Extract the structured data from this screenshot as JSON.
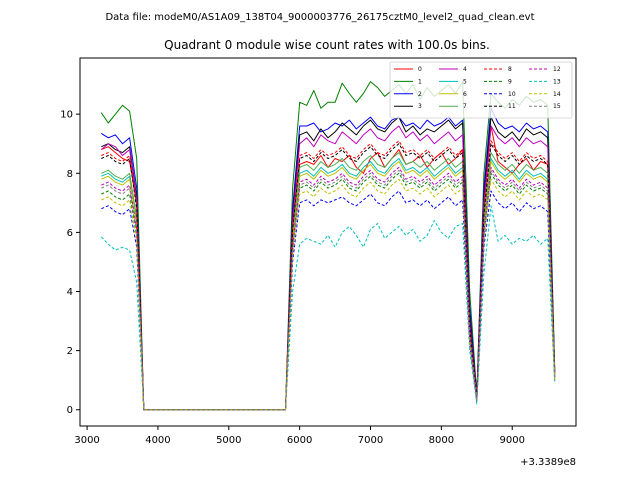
{
  "chart_data": {
    "type": "line",
    "suptitle": "Data file: modeM0/AS1A09_138T04_9000003776_26175cztM0_level2_quad_clean.evt",
    "title": "Quadrant 0 module wise count rates with 100.0s bins.",
    "xlabel": "",
    "ylabel": "",
    "x_offset_label": "+3.3389e8",
    "xlim": [
      2900,
      9900
    ],
    "ylim": [
      -0.55,
      11.9
    ],
    "xticks": [
      3000,
      4000,
      5000,
      6000,
      7000,
      8000,
      9000
    ],
    "yticks": [
      0,
      2,
      4,
      6,
      8,
      10
    ],
    "legend_position": "top-right",
    "x": [
      3200,
      3300,
      3400,
      3500,
      3600,
      3700,
      3800,
      3900,
      4000,
      4100,
      4200,
      4300,
      4400,
      4500,
      4600,
      4700,
      4800,
      4900,
      5000,
      5100,
      5200,
      5300,
      5400,
      5500,
      5600,
      5700,
      5800,
      5900,
      6000,
      6100,
      6200,
      6300,
      6400,
      6500,
      6600,
      6700,
      6800,
      6900,
      7000,
      7100,
      7200,
      7300,
      7400,
      7500,
      7600,
      7700,
      7800,
      7900,
      8000,
      8100,
      8200,
      8300,
      8400,
      8500,
      8600,
      8700,
      8800,
      8900,
      9000,
      9100,
      9200,
      9300,
      9400,
      9500,
      9600
    ],
    "series": [
      {
        "name": "0",
        "color": "#ff0000",
        "dash": "solid",
        "values": [
          8.8,
          8.9,
          8.7,
          8.5,
          8.4,
          7.0,
          0,
          0,
          0,
          0,
          0,
          0,
          0,
          0,
          0,
          0,
          0,
          0,
          0,
          0,
          0,
          0,
          0,
          0,
          0,
          0,
          0,
          6.0,
          8.3,
          8.4,
          8.3,
          8.6,
          8.2,
          8.5,
          8.4,
          8.6,
          8.2,
          8.0,
          8.5,
          8.7,
          8.2,
          8.5,
          8.8,
          8.3,
          8.4,
          8.6,
          8.2,
          8.5,
          8.7,
          8.3,
          8.5,
          8.8,
          2.5,
          0.3,
          6.8,
          9.6,
          8.4,
          8.2,
          8.0,
          8.3,
          8.5,
          8.1,
          8.4,
          8.3,
          1.2
        ]
      },
      {
        "name": "1",
        "color": "#008000",
        "dash": "solid",
        "values": [
          10.05,
          9.7,
          10.0,
          10.3,
          10.1,
          8.5,
          0,
          0,
          0,
          0,
          0,
          0,
          0,
          0,
          0,
          0,
          0,
          0,
          0,
          0,
          0,
          0,
          0,
          0,
          0,
          0,
          0,
          7.5,
          10.4,
          10.3,
          10.8,
          10.2,
          10.4,
          10.4,
          11.05,
          10.7,
          10.4,
          10.7,
          11.1,
          10.9,
          10.6,
          10.8,
          11.0,
          10.7,
          11.0,
          10.5,
          10.9,
          10.6,
          10.8,
          11.0,
          10.7,
          11.1,
          4.0,
          0.5,
          8.0,
          10.7,
          10.4,
          10.2,
          10.5,
          10.3,
          10.6,
          10.4,
          10.5,
          10.3,
          1.4
        ]
      },
      {
        "name": "2",
        "color": "#0000ff",
        "dash": "solid",
        "values": [
          9.35,
          9.2,
          9.3,
          9.0,
          9.2,
          7.5,
          0,
          0,
          0,
          0,
          0,
          0,
          0,
          0,
          0,
          0,
          0,
          0,
          0,
          0,
          0,
          0,
          0,
          0,
          0,
          0,
          0,
          6.8,
          9.6,
          9.6,
          9.7,
          9.4,
          9.5,
          9.7,
          9.6,
          9.8,
          9.5,
          9.7,
          9.9,
          9.6,
          9.5,
          9.8,
          9.9,
          9.6,
          9.7,
          9.5,
          9.8,
          9.6,
          9.7,
          9.9,
          9.6,
          9.8,
          3.5,
          0.4,
          7.5,
          10.2,
          9.7,
          9.5,
          9.6,
          9.4,
          9.7,
          9.5,
          9.6,
          9.4,
          1.3
        ]
      },
      {
        "name": "3",
        "color": "#000000",
        "dash": "solid",
        "values": [
          8.9,
          9.0,
          8.8,
          8.7,
          8.9,
          7.2,
          0,
          0,
          0,
          0,
          0,
          0,
          0,
          0,
          0,
          0,
          0,
          0,
          0,
          0,
          0,
          0,
          0,
          0,
          0,
          0,
          0,
          6.5,
          9.3,
          9.4,
          9.1,
          9.5,
          9.2,
          9.4,
          9.7,
          9.5,
          9.3,
          9.6,
          9.8,
          9.5,
          9.4,
          9.7,
          9.9,
          9.4,
          9.6,
          9.3,
          9.5,
          9.4,
          9.6,
          9.8,
          9.5,
          9.7,
          3.2,
          0.4,
          7.2,
          9.9,
          9.4,
          9.2,
          9.4,
          9.1,
          9.5,
          9.3,
          9.4,
          9.2,
          1.3
        ]
      },
      {
        "name": "4",
        "color": "#bf00bf",
        "dash": "solid",
        "values": [
          8.8,
          9.0,
          8.9,
          8.6,
          8.8,
          7.1,
          0,
          0,
          0,
          0,
          0,
          0,
          0,
          0,
          0,
          0,
          0,
          0,
          0,
          0,
          0,
          0,
          0,
          0,
          0,
          0,
          0,
          6.4,
          9.0,
          9.2,
          8.9,
          9.3,
          9.1,
          9.0,
          9.4,
          9.2,
          9.0,
          9.3,
          9.5,
          9.2,
          9.1,
          9.4,
          9.6,
          9.2,
          9.4,
          9.1,
          9.3,
          9.0,
          9.2,
          9.4,
          9.1,
          9.3,
          3.0,
          0.4,
          7.0,
          9.6,
          9.2,
          9.0,
          9.2,
          8.9,
          9.2,
          9.0,
          9.1,
          8.9,
          1.2
        ]
      },
      {
        "name": "5",
        "color": "#00bfbf",
        "dash": "solid",
        "values": [
          7.9,
          8.0,
          7.8,
          7.7,
          7.9,
          6.4,
          0,
          0,
          0,
          0,
          0,
          0,
          0,
          0,
          0,
          0,
          0,
          0,
          0,
          0,
          0,
          0,
          0,
          0,
          0,
          0,
          0,
          5.8,
          8.0,
          8.1,
          7.9,
          8.2,
          8.0,
          8.1,
          8.3,
          8.0,
          7.9,
          8.2,
          8.4,
          8.1,
          8.0,
          8.3,
          8.5,
          8.1,
          8.2,
          8.0,
          8.2,
          7.9,
          8.1,
          8.3,
          8.0,
          8.2,
          2.6,
          0.3,
          6.2,
          8.5,
          8.1,
          7.9,
          8.1,
          7.8,
          8.1,
          7.9,
          8.0,
          7.8,
          1.1
        ]
      },
      {
        "name": "6",
        "color": "#bfbf00",
        "dash": "solid",
        "values": [
          7.8,
          7.9,
          7.7,
          7.6,
          7.8,
          6.3,
          0,
          0,
          0,
          0,
          0,
          0,
          0,
          0,
          0,
          0,
          0,
          0,
          0,
          0,
          0,
          0,
          0,
          0,
          0,
          0,
          0,
          5.7,
          7.9,
          8.0,
          7.8,
          8.1,
          7.9,
          8.0,
          8.2,
          7.9,
          7.8,
          8.1,
          8.3,
          8.0,
          7.9,
          8.2,
          8.4,
          8.0,
          8.1,
          7.9,
          8.1,
          7.8,
          8.0,
          8.2,
          7.9,
          8.1,
          2.5,
          0.3,
          6.1,
          8.4,
          8.0,
          7.8,
          8.0,
          7.7,
          8.0,
          7.8,
          7.9,
          7.7,
          1.1
        ]
      },
      {
        "name": "7",
        "color": "#4caf50",
        "dash": "solid",
        "values": [
          8.0,
          8.1,
          7.9,
          7.8,
          8.0,
          6.5,
          0,
          0,
          0,
          0,
          0,
          0,
          0,
          0,
          0,
          0,
          0,
          0,
          0,
          0,
          0,
          0,
          0,
          0,
          0,
          0,
          0,
          5.9,
          8.2,
          8.3,
          8.1,
          8.4,
          8.2,
          8.3,
          8.5,
          8.2,
          8.1,
          8.4,
          8.6,
          8.3,
          8.2,
          8.5,
          8.7,
          8.3,
          8.4,
          8.2,
          8.4,
          8.1,
          8.3,
          8.5,
          8.2,
          8.4,
          2.7,
          0.3,
          6.4,
          8.7,
          8.3,
          8.1,
          8.3,
          8.0,
          8.3,
          8.1,
          8.2,
          8.0,
          1.1
        ]
      },
      {
        "name": "8",
        "color": "#ff0000",
        "dash": "dashed",
        "values": [
          8.6,
          8.7,
          8.5,
          8.4,
          8.6,
          6.9,
          0,
          0,
          0,
          0,
          0,
          0,
          0,
          0,
          0,
          0,
          0,
          0,
          0,
          0,
          0,
          0,
          0,
          0,
          0,
          0,
          0,
          6.2,
          8.6,
          8.7,
          8.5,
          8.8,
          8.6,
          8.7,
          8.9,
          8.6,
          8.5,
          8.8,
          9.0,
          8.7,
          8.6,
          8.9,
          9.1,
          8.7,
          8.8,
          8.6,
          8.8,
          8.5,
          8.7,
          8.9,
          8.6,
          8.8,
          2.9,
          0.4,
          6.7,
          9.1,
          8.7,
          8.5,
          8.7,
          8.4,
          8.7,
          8.5,
          8.6,
          8.4,
          1.2
        ]
      },
      {
        "name": "9",
        "color": "#008000",
        "dash": "dashed",
        "values": [
          7.3,
          7.4,
          7.2,
          7.1,
          7.3,
          5.9,
          0,
          0,
          0,
          0,
          0,
          0,
          0,
          0,
          0,
          0,
          0,
          0,
          0,
          0,
          0,
          0,
          0,
          0,
          0,
          0,
          0,
          5.3,
          7.5,
          7.6,
          7.4,
          7.7,
          7.5,
          7.6,
          7.8,
          7.5,
          7.4,
          7.7,
          7.9,
          7.6,
          7.5,
          7.8,
          8.0,
          7.6,
          7.7,
          7.5,
          7.7,
          7.4,
          7.6,
          7.8,
          7.5,
          7.7,
          2.4,
          0.3,
          5.9,
          8.0,
          7.6,
          7.4,
          7.6,
          7.3,
          7.6,
          7.4,
          7.5,
          7.3,
          1.0
        ]
      },
      {
        "name": "10",
        "color": "#0000ff",
        "dash": "dashed",
        "values": [
          6.8,
          6.9,
          6.7,
          6.6,
          6.8,
          5.5,
          0,
          0,
          0,
          0,
          0,
          0,
          0,
          0,
          0,
          0,
          0,
          0,
          0,
          0,
          0,
          0,
          0,
          0,
          0,
          0,
          0,
          5.0,
          7.0,
          7.1,
          6.9,
          7.1,
          7.0,
          7.1,
          7.2,
          7.0,
          6.9,
          7.1,
          7.3,
          7.0,
          6.9,
          7.2,
          7.4,
          7.0,
          7.1,
          6.9,
          7.1,
          6.8,
          7.0,
          7.2,
          6.9,
          7.1,
          2.2,
          0.3,
          5.5,
          7.4,
          7.0,
          6.8,
          7.0,
          6.7,
          7.0,
          6.8,
          6.9,
          6.7,
          1.0
        ]
      },
      {
        "name": "11",
        "color": "#000000",
        "dash": "dashed",
        "values": [
          8.5,
          8.6,
          8.4,
          8.3,
          8.5,
          6.8,
          0,
          0,
          0,
          0,
          0,
          0,
          0,
          0,
          0,
          0,
          0,
          0,
          0,
          0,
          0,
          0,
          0,
          0,
          0,
          0,
          0,
          6.1,
          8.5,
          8.6,
          8.4,
          8.7,
          8.5,
          8.6,
          8.8,
          8.5,
          8.4,
          8.7,
          8.9,
          8.6,
          8.5,
          8.8,
          9.0,
          8.6,
          8.7,
          8.5,
          8.7,
          8.4,
          8.6,
          8.8,
          8.5,
          8.7,
          2.8,
          0.4,
          6.6,
          9.0,
          8.6,
          8.4,
          8.6,
          8.3,
          8.6,
          8.4,
          8.5,
          8.3,
          1.2
        ]
      },
      {
        "name": "12",
        "color": "#bf00bf",
        "dash": "dashed",
        "values": [
          7.6,
          7.7,
          7.5,
          7.4,
          7.6,
          6.1,
          0,
          0,
          0,
          0,
          0,
          0,
          0,
          0,
          0,
          0,
          0,
          0,
          0,
          0,
          0,
          0,
          0,
          0,
          0,
          0,
          0,
          5.5,
          7.7,
          7.8,
          7.6,
          7.9,
          7.7,
          7.8,
          8.0,
          7.7,
          7.6,
          7.9,
          8.1,
          7.8,
          7.7,
          8.0,
          8.2,
          7.8,
          7.9,
          7.7,
          7.9,
          7.6,
          7.8,
          8.0,
          7.7,
          7.9,
          2.5,
          0.3,
          6.0,
          8.2,
          7.8,
          7.6,
          7.8,
          7.5,
          7.8,
          7.6,
          7.7,
          7.5,
          1.1
        ]
      },
      {
        "name": "13",
        "color": "#00bfbf",
        "dash": "dashed",
        "values": [
          5.85,
          5.6,
          5.4,
          5.5,
          5.4,
          4.3,
          0,
          0,
          0,
          0,
          0,
          0,
          0,
          0,
          0,
          0,
          0,
          0,
          0,
          0,
          0,
          0,
          0,
          0,
          0,
          0,
          0,
          4.0,
          5.6,
          5.8,
          5.7,
          5.6,
          5.9,
          5.5,
          6.0,
          6.2,
          5.9,
          5.5,
          6.1,
          6.3,
          5.8,
          6.0,
          6.2,
          5.9,
          6.1,
          5.7,
          5.9,
          6.4,
          6.0,
          5.8,
          6.2,
          6.3,
          2.0,
          0.2,
          4.6,
          6.9,
          5.7,
          5.9,
          5.6,
          5.8,
          5.7,
          5.9,
          5.6,
          5.8,
          0.9
        ]
      },
      {
        "name": "14",
        "color": "#bfbf00",
        "dash": "dashed",
        "values": [
          7.1,
          7.2,
          7.0,
          6.9,
          7.1,
          5.7,
          0,
          0,
          0,
          0,
          0,
          0,
          0,
          0,
          0,
          0,
          0,
          0,
          0,
          0,
          0,
          0,
          0,
          0,
          0,
          0,
          0,
          5.2,
          7.3,
          7.4,
          7.2,
          7.5,
          7.3,
          7.4,
          7.6,
          7.3,
          7.2,
          7.5,
          7.7,
          7.4,
          7.3,
          7.6,
          7.8,
          7.4,
          7.5,
          7.3,
          7.5,
          7.2,
          7.4,
          7.6,
          7.3,
          7.5,
          2.3,
          0.3,
          5.7,
          7.8,
          7.4,
          7.2,
          7.4,
          7.1,
          7.4,
          7.2,
          7.3,
          7.1,
          1.0
        ]
      },
      {
        "name": "15",
        "color": "#808080",
        "dash": "dashed",
        "values": [
          7.5,
          7.6,
          7.4,
          7.3,
          7.5,
          6.0,
          0,
          0,
          0,
          0,
          0,
          0,
          0,
          0,
          0,
          0,
          0,
          0,
          0,
          0,
          0,
          0,
          0,
          0,
          0,
          0,
          0,
          5.4,
          7.6,
          7.7,
          7.5,
          7.8,
          7.6,
          7.7,
          7.9,
          7.6,
          7.5,
          7.8,
          8.0,
          7.7,
          7.6,
          7.9,
          8.1,
          7.7,
          7.8,
          7.6,
          7.8,
          7.5,
          7.7,
          7.9,
          7.6,
          7.8,
          2.5,
          0.3,
          5.9,
          8.1,
          7.7,
          7.5,
          7.7,
          7.4,
          7.7,
          7.5,
          7.6,
          7.4,
          1.0
        ]
      }
    ]
  }
}
